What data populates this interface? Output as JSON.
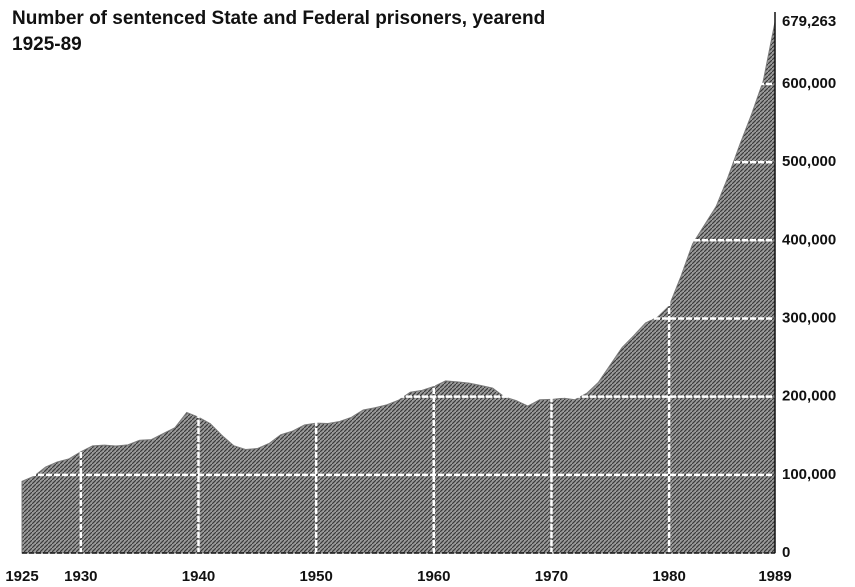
{
  "chart_data": {
    "type": "area",
    "title": "Number of sentenced State and Federal prisoners, yearend 1925-89",
    "x": [
      1925,
      1926,
      1927,
      1928,
      1929,
      1930,
      1931,
      1932,
      1933,
      1934,
      1935,
      1936,
      1937,
      1938,
      1939,
      1940,
      1941,
      1942,
      1943,
      1944,
      1945,
      1946,
      1947,
      1948,
      1949,
      1950,
      1951,
      1952,
      1953,
      1954,
      1955,
      1956,
      1957,
      1958,
      1959,
      1960,
      1961,
      1962,
      1963,
      1964,
      1965,
      1966,
      1967,
      1968,
      1969,
      1970,
      1971,
      1972,
      1973,
      1974,
      1975,
      1976,
      1977,
      1978,
      1979,
      1980,
      1981,
      1982,
      1983,
      1984,
      1985,
      1986,
      1987,
      1988,
      1989
    ],
    "values": [
      91669,
      97991,
      109983,
      116390,
      120496,
      129453,
      137082,
      137997,
      136810,
      138316,
      144180,
      145038,
      152741,
      160285,
      179818,
      173706,
      165439,
      150384,
      137220,
      132456,
      133649,
      140079,
      151304,
      155977,
      163749,
      166123,
      165680,
      168233,
      173579,
      182901,
      185780,
      189565,
      195414,
      205643,
      208105,
      212953,
      220149,
      218830,
      217283,
      214336,
      210895,
      199654,
      194896,
      187914,
      196007,
      196441,
      198061,
      196092,
      204211,
      218466,
      240593,
      262833,
      278141,
      294396,
      301470,
      315974,
      353673,
      395516,
      419346,
      443398,
      480568,
      522084,
      560812,
      603732,
      679263
    ],
    "color": "#7a7a7a",
    "xlim": [
      1925,
      1989
    ],
    "xticks": [
      1925,
      1930,
      1940,
      1950,
      1960,
      1970,
      1980,
      1989
    ],
    "ylim": [
      0,
      679263
    ],
    "yticks": [
      0,
      {
        "value": 100000,
        "label": "100,000"
      },
      {
        "value": 200000,
        "label": "200,000"
      },
      {
        "value": 300000,
        "label": "300,000"
      },
      {
        "value": 400000,
        "label": "400,000"
      },
      {
        "value": 500000,
        "label": "500,000"
      },
      {
        "value": 600000,
        "label": "600,000"
      },
      {
        "value": 679263,
        "label": "679,263"
      }
    ],
    "grid": true
  }
}
